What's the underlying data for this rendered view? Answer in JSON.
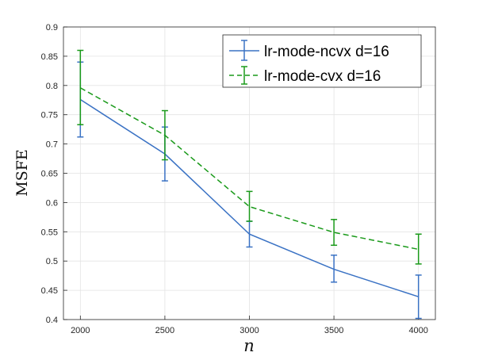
{
  "chart_data": {
    "type": "line",
    "title": "",
    "xlabel": "n",
    "ylabel": "MSFE",
    "x": [
      2000,
      2500,
      3000,
      3500,
      4000
    ],
    "xticks": [
      "2000",
      "2500",
      "3000",
      "3500",
      "4000"
    ],
    "xlim": [
      1900,
      4100
    ],
    "ylim": [
      0.4,
      0.9
    ],
    "yticks": [
      "0.4",
      "0.45",
      "0.5",
      "0.55",
      "0.6",
      "0.65",
      "0.7",
      "0.75",
      "0.8",
      "0.85",
      "0.9"
    ],
    "grid": true,
    "legend_position": "top-right",
    "series": [
      {
        "name": "lr-mode-ncvx d=16",
        "color": "#3a72c4",
        "line_style": "solid",
        "values": [
          0.776,
          0.683,
          0.546,
          0.486,
          0.439
        ],
        "err_low": [
          0.712,
          0.637,
          0.524,
          0.464,
          0.402
        ],
        "err_high": [
          0.84,
          0.729,
          0.568,
          0.51,
          0.476
        ]
      },
      {
        "name": "lr-mode-cvx d=16",
        "color": "#1a9a1a",
        "line_style": "dashed",
        "values": [
          0.796,
          0.715,
          0.593,
          0.549,
          0.52
        ],
        "err_low": [
          0.733,
          0.673,
          0.568,
          0.527,
          0.495
        ],
        "err_high": [
          0.86,
          0.757,
          0.619,
          0.571,
          0.546
        ]
      }
    ]
  }
}
